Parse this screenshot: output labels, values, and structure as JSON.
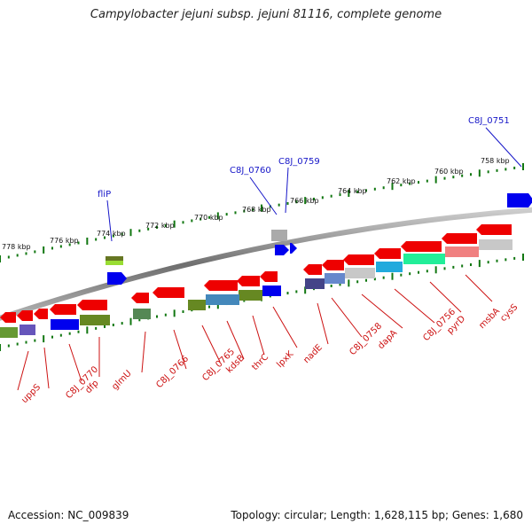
{
  "header": {
    "title": "Campylobacter jejuni subsp. jejuni 81116, complete genome"
  },
  "footer": {
    "accession": "Accession: NC_009839",
    "summary": "Topology: circular; Length: 1,628,115 bp; Genes: 1,680"
  },
  "scale": {
    "unit": "kbp",
    "ticks": [
      "758 kbp",
      "760 kbp",
      "762 kbp",
      "764 kbp",
      "766 kbp",
      "768 kbp",
      "770 kbp",
      "772 kbp",
      "774 kbp",
      "776 kbp",
      "778 kbp"
    ]
  },
  "genes": {
    "forward_labels": [
      "C8J_0751",
      "C8J_0759",
      "C8J_0760",
      "fliP"
    ],
    "reverse_labels": [
      "cysS",
      "msbA",
      "pyrD",
      "C8J_0756",
      "dapA",
      "C8J_0758",
      "nadE",
      "lpxK",
      "thrC",
      "kdsB",
      "C8J_0765",
      "C8J_0766",
      "glmU",
      "dfp",
      "C8J_0770",
      "uppS"
    ]
  },
  "colors": {
    "forward_label": "#1616c8",
    "reverse_label": "#cc1010",
    "cds_forward": "#0000ee",
    "cds_reverse": "#ee0000",
    "backbone": "#888888",
    "tick": "#117711"
  }
}
